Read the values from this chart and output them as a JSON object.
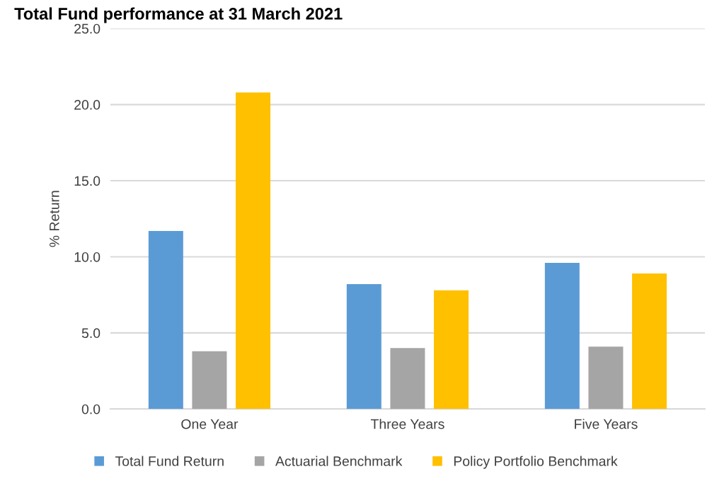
{
  "chart_data": {
    "type": "bar",
    "title": "Total Fund performance at 31 March 2021",
    "ylabel": "% Return",
    "categories": [
      "One Year",
      "Three Years",
      "Five Years"
    ],
    "series": [
      {
        "name": "Total Fund Return",
        "color": "#5b9bd5",
        "values": [
          11.7,
          8.2,
          9.6
        ]
      },
      {
        "name": "Actuarial Benchmark",
        "color": "#a5a5a5",
        "values": [
          3.8,
          4.0,
          4.1
        ]
      },
      {
        "name": "Policy Portfolio Benchmark",
        "color": "#ffc000",
        "values": [
          20.8,
          7.8,
          8.9
        ]
      }
    ],
    "ylim": [
      0,
      25
    ],
    "yticks": [
      {
        "value": 0,
        "label": "0.0"
      },
      {
        "value": 5,
        "label": "5.0"
      },
      {
        "value": 10,
        "label": "10.0"
      },
      {
        "value": 15,
        "label": "15.0"
      },
      {
        "value": 20,
        "label": "20.0"
      },
      {
        "value": 25,
        "label": "25.0"
      }
    ],
    "grid": "y",
    "legend": "bottom"
  }
}
